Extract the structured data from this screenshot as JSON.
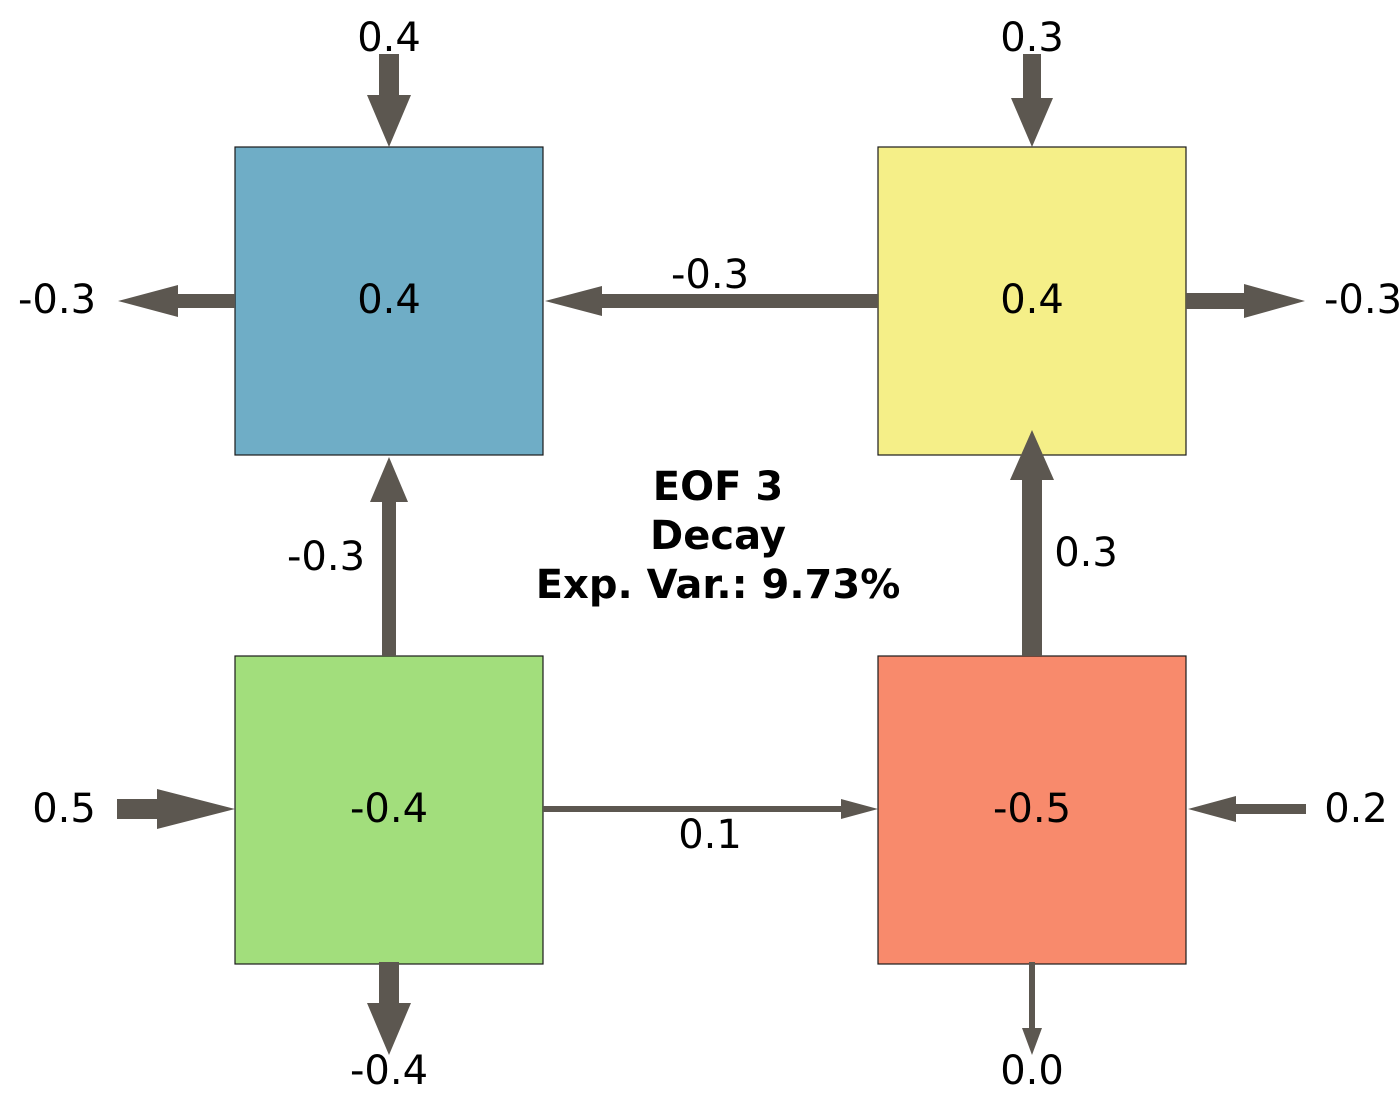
{
  "title": {
    "line1": "EOF 3",
    "line2": "Decay",
    "line3": "Exp. Var.: 9.73%"
  },
  "boxes": {
    "top_left": {
      "value": "0.4",
      "color": "#6fadc6"
    },
    "top_right": {
      "value": "0.4",
      "color": "#f5ef88"
    },
    "bottom_left": {
      "value": "-0.4",
      "color": "#a2de7c"
    },
    "bottom_right": {
      "value": "-0.5",
      "color": "#f88a6c"
    }
  },
  "arrows": {
    "top_left_in_top": "0.4",
    "top_right_in_top": "0.3",
    "top_left_out_left": "-0.3",
    "top_right_out_right": "-0.3",
    "top_right_to_top_left": "-0.3",
    "bottom_left_to_top_left": "-0.3",
    "bottom_right_to_top_right": "0.3",
    "bottom_left_to_bottom_right": "0.1",
    "bottom_left_in_left": "0.5",
    "bottom_right_in_right": "0.2",
    "bottom_left_out_bottom": "-0.4",
    "bottom_right_out_bottom": "0.0"
  },
  "arrow_color": "#5c5750"
}
